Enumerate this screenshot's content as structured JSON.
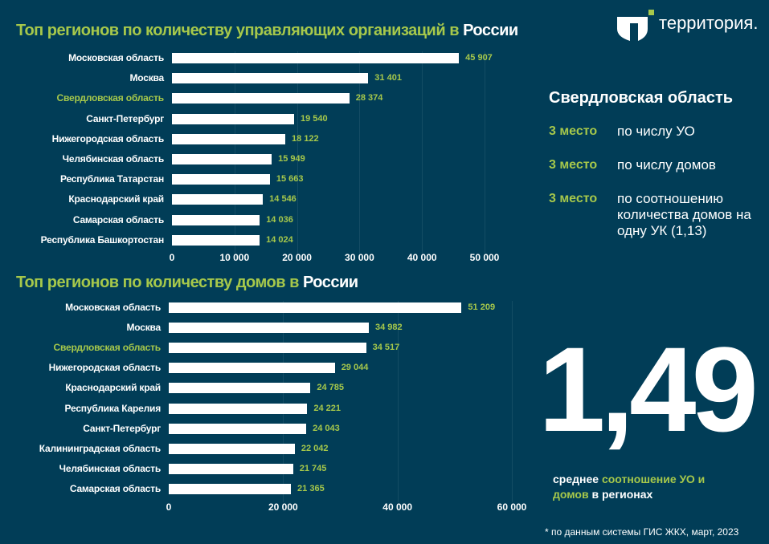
{
  "brand": {
    "logo_text": "территория.",
    "accent": "#a6c84b",
    "background": "#013d57"
  },
  "chart_data": [
    {
      "type": "bar",
      "orientation": "horizontal",
      "title": "Топ регионов по количеству управляющих организаций в",
      "title_highlight": "России",
      "categories": [
        "Московская область",
        "Москва",
        "Свердловская область",
        "Санкт-Петербург",
        "Нижегородская область",
        "Челябинская область",
        "Республика Татарстан",
        "Краснодарский край",
        "Самарская область",
        "Республика Башкортостан"
      ],
      "values": [
        45907,
        31401,
        28374,
        19540,
        18122,
        15949,
        15663,
        14546,
        14036,
        14024
      ],
      "value_labels": [
        "45 907",
        "31 401",
        "28 374",
        "19 540",
        "18 122",
        "15 949",
        "15 663",
        "14 546",
        "14 036",
        "14 024"
      ],
      "highlighted_category": "Свердловская область",
      "xlim": [
        0,
        50000
      ],
      "xticks": [
        0,
        10000,
        20000,
        30000,
        40000,
        50000
      ],
      "xtick_labels": [
        "0",
        "10 000",
        "20 000",
        "30 000",
        "40 000",
        "50 000"
      ],
      "grid": true
    },
    {
      "type": "bar",
      "orientation": "horizontal",
      "title": "Топ регионов по количеству домов в",
      "title_highlight": "России",
      "categories": [
        "Московская область",
        "Москва",
        "Свердловская область",
        "Нижегородская область",
        "Краснодарский край",
        "Республика Карелия",
        "Санкт-Петербург",
        "Калининградская область",
        "Челябинская область",
        "Самарская область"
      ],
      "values": [
        51209,
        34982,
        34517,
        29044,
        24785,
        24221,
        24043,
        22042,
        21745,
        21365
      ],
      "value_labels": [
        "51 209",
        "34 982",
        "34 517",
        "29 044",
        "24 785",
        "24 221",
        "24 043",
        "22 042",
        "21 745",
        "21 365"
      ],
      "highlighted_category": "Свердловская область",
      "xlim": [
        0,
        60000
      ],
      "xticks": [
        0,
        20000,
        40000,
        60000
      ],
      "xtick_labels": [
        "0",
        "20 000",
        "40 000",
        "60 000"
      ],
      "grid": true
    }
  ],
  "side": {
    "heading": "Свердловская область",
    "places": [
      {
        "rank": "3 место",
        "text": "по числу УО"
      },
      {
        "rank": "3 место",
        "text": "по числу домов"
      },
      {
        "rank": "3 место",
        "text": "по соотношению количества домов на одну УК (1,13)"
      }
    ]
  },
  "highlight": {
    "value": "1,49",
    "caption_1": "среднее",
    "caption_2": "соотношение УО и",
    "caption_3": "домов",
    "caption_4": "в регионах"
  },
  "footnote": "* по данным системы ГИС ЖКХ, март, 2023"
}
